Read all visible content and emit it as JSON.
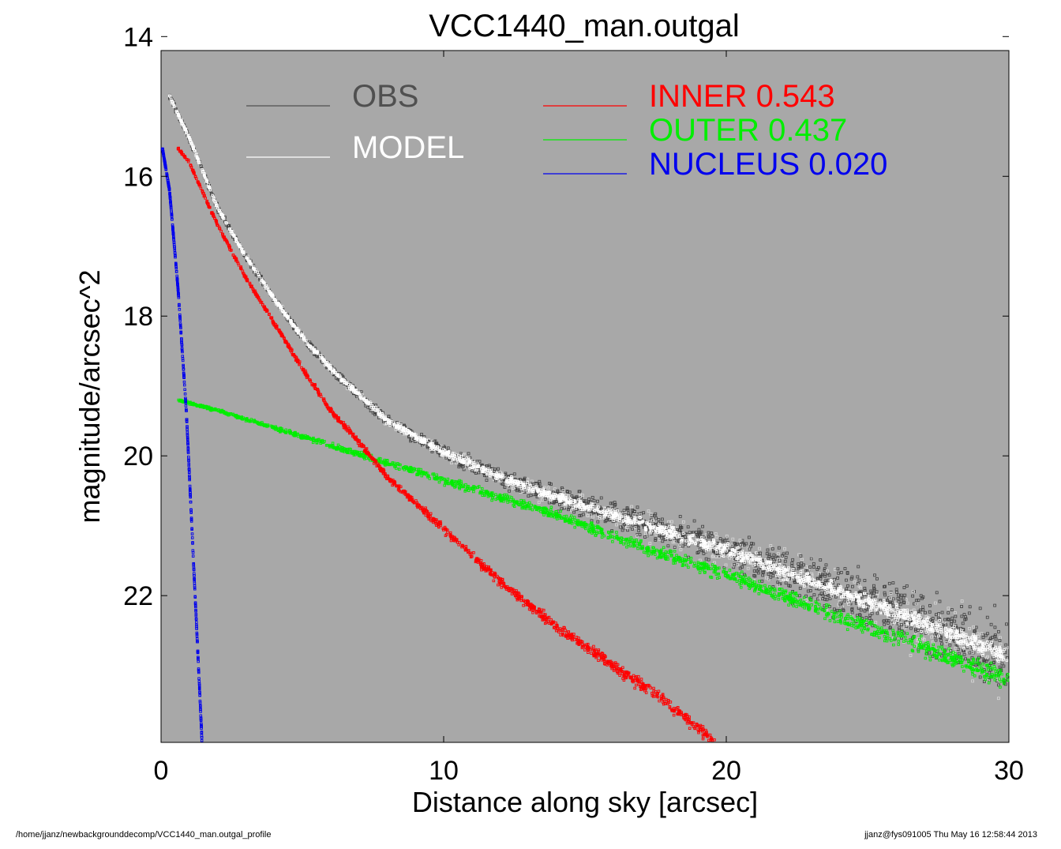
{
  "chart_data": {
    "type": "scatter",
    "title": "VCC1440_man.outgal",
    "xlabel": "Distance along sky [arcsec]",
    "ylabel": "magnitude/arcsec^2",
    "xlim": [
      0,
      30
    ],
    "ylim": [
      24.1,
      14.2
    ],
    "y_inverted": true,
    "xticks": [
      0,
      10,
      20,
      30
    ],
    "yticks": [
      14,
      16,
      18,
      20,
      22
    ],
    "grid": false,
    "background_color": "#a8a8a8",
    "legend": [
      {
        "label": "OBS",
        "value": "",
        "color": "#505050"
      },
      {
        "label": "MODEL",
        "value": "",
        "color": "#ffffff"
      },
      {
        "label": "INNER",
        "value": "0.543",
        "color": "#ff0000"
      },
      {
        "label": "OUTER",
        "value": "0.437",
        "color": "#00ee00"
      },
      {
        "label": "NUCLEUS",
        "value": "0.020",
        "color": "#0000ee"
      }
    ],
    "series": [
      {
        "name": "OBS",
        "color": "#404040",
        "x": [
          0.3,
          0.7,
          1.0,
          1.5,
          2.0,
          3.0,
          4.0,
          5.0,
          6.0,
          8.0,
          10.0,
          12.0,
          14.0,
          16.0,
          18.0,
          20.0,
          22.0,
          24.0,
          26.0,
          28.0,
          30.0
        ],
        "y": [
          14.85,
          15.2,
          15.45,
          15.95,
          16.45,
          17.15,
          17.75,
          18.3,
          18.75,
          19.5,
          19.95,
          20.3,
          20.6,
          20.85,
          21.1,
          21.35,
          21.65,
          21.95,
          22.25,
          22.55,
          22.9
        ],
        "scatter_spread_at_x30": 1.3
      },
      {
        "name": "MODEL",
        "color": "#ffffff",
        "x": [
          0.3,
          0.7,
          1.0,
          1.5,
          2.0,
          3.0,
          4.0,
          5.0,
          6.0,
          8.0,
          10.0,
          12.0,
          14.0,
          16.0,
          18.0,
          20.0,
          22.0,
          24.0,
          26.0,
          28.0,
          30.0
        ],
        "y": [
          14.85,
          15.2,
          15.45,
          15.95,
          16.45,
          17.15,
          17.75,
          18.3,
          18.75,
          19.5,
          19.95,
          20.3,
          20.6,
          20.85,
          21.1,
          21.35,
          21.65,
          21.95,
          22.25,
          22.55,
          22.9
        ]
      },
      {
        "name": "INNER",
        "color": "#ff0000",
        "x": [
          0.6,
          1.0,
          2.0,
          3.0,
          4.0,
          5.0,
          6.0,
          7.0,
          8.0,
          10.0,
          12.0,
          14.0,
          16.0,
          18.0,
          19.6
        ],
        "y": [
          15.6,
          15.8,
          16.7,
          17.45,
          18.1,
          18.75,
          19.35,
          19.8,
          20.3,
          21.05,
          21.8,
          22.45,
          23.0,
          23.55,
          24.1
        ]
      },
      {
        "name": "OUTER",
        "color": "#00ee00",
        "x": [
          0.6,
          2.0,
          4.0,
          6.0,
          8.0,
          10.0,
          12.0,
          14.0,
          16.0,
          18.0,
          20.0,
          22.0,
          24.0,
          26.0,
          28.0,
          30.0
        ],
        "y": [
          19.2,
          19.35,
          19.6,
          19.85,
          20.1,
          20.35,
          20.6,
          20.85,
          21.15,
          21.45,
          21.7,
          22.0,
          22.3,
          22.6,
          22.9,
          23.2
        ]
      },
      {
        "name": "NUCLEUS",
        "color": "#0000ee",
        "x": [
          0.05,
          0.3,
          0.6,
          0.9,
          1.1,
          1.3,
          1.45
        ],
        "y": [
          15.6,
          16.2,
          17.6,
          19.4,
          21.1,
          22.8,
          24.1
        ]
      }
    ]
  },
  "footer": {
    "left": "/home/jjanz/newbackgrounddecomp/VCC1440_man.outgal_profile",
    "right": "jjanz@fys091005  Thu May 16 12:58:44 2013"
  }
}
